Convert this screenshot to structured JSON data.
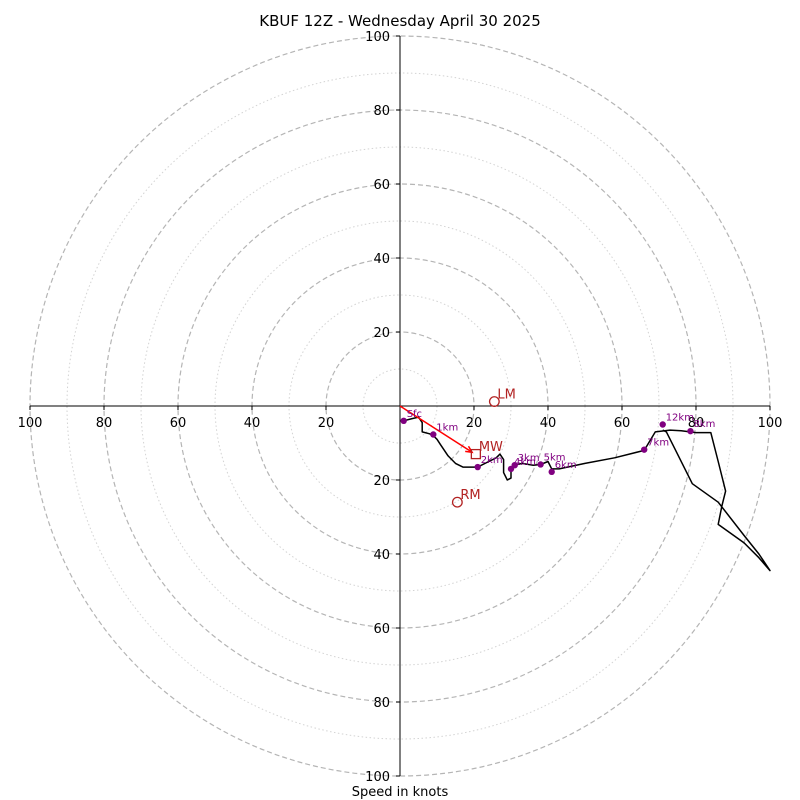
{
  "chart_data": {
    "type": "hodograph",
    "title": "KBUF 12Z - Wednesday April 30 2025",
    "xlabel": "Speed in knots",
    "xlim": [
      -100,
      100
    ],
    "ylim": [
      -100,
      100
    ],
    "ring_labels_major": [
      20,
      40,
      60,
      80,
      100
    ],
    "ring_minor_step": 10,
    "grid": true,
    "axis_tick_labels": {
      "x": [
        "100",
        "80",
        "60",
        "40",
        "20",
        "20",
        "40",
        "60",
        "80",
        "100"
      ],
      "y": [
        "100",
        "80",
        "60",
        "40",
        "20",
        "20",
        "40",
        "60",
        "80",
        "100"
      ]
    },
    "trace_color": "#000000",
    "height_marker_color": "#800080",
    "motion_color": "#b22222",
    "trace": [
      [
        1,
        -4
      ],
      [
        3,
        -3.5
      ],
      [
        5,
        -3
      ],
      [
        6,
        -4.5
      ],
      [
        6,
        -7
      ],
      [
        8,
        -7.5
      ],
      [
        9,
        -8
      ],
      [
        10,
        -9
      ],
      [
        11,
        -10.5
      ],
      [
        12,
        -12
      ],
      [
        13,
        -13.5
      ],
      [
        15,
        -15.5
      ],
      [
        17,
        -16.5
      ],
      [
        21,
        -16.5
      ],
      [
        24,
        -15
      ],
      [
        26,
        -14
      ],
      [
        27,
        -13
      ],
      [
        28,
        -14.5
      ],
      [
        28,
        -18
      ],
      [
        29,
        -20
      ],
      [
        30,
        -19.5
      ],
      [
        30,
        -17.5
      ],
      [
        31,
        -16
      ],
      [
        33,
        -15.5
      ],
      [
        36,
        -16
      ],
      [
        38,
        -15.8
      ],
      [
        40,
        -15
      ],
      [
        41,
        -17
      ],
      [
        43,
        -17
      ],
      [
        50,
        -15.5
      ],
      [
        58,
        -14
      ],
      [
        66,
        -12
      ],
      [
        69,
        -7
      ],
      [
        73,
        -6.5
      ],
      [
        76,
        -6.7
      ],
      [
        80,
        -7.2
      ],
      [
        84,
        -7.2
      ],
      [
        86,
        -15
      ],
      [
        88,
        -23
      ],
      [
        87,
        -27
      ],
      [
        86,
        -32
      ],
      [
        93,
        -37
      ],
      [
        97,
        -41
      ],
      [
        100,
        -44.5
      ],
      [
        97,
        -40
      ],
      [
        93,
        -35
      ],
      [
        86,
        -26
      ],
      [
        79,
        -21
      ],
      [
        74,
        -11
      ],
      [
        72,
        -7
      ],
      [
        71,
        -6.5
      ]
    ],
    "height_markers": [
      {
        "label": "Sfc",
        "u": 1,
        "v": -4
      },
      {
        "label": "1km",
        "u": 9,
        "v": -7.7
      },
      {
        "label": "2km",
        "u": 21,
        "v": -16.5
      },
      {
        "label": "3km",
        "u": 31,
        "v": -16
      },
      {
        "label": "4km",
        "u": 30,
        "v": -17
      },
      {
        "label": "5km",
        "u": 38,
        "v": -15.8
      },
      {
        "label": "6km",
        "u": 41,
        "v": -17.8
      },
      {
        "label": "7km",
        "u": 66,
        "v": -11.8
      },
      {
        "label": "8km",
        "u": 78.5,
        "v": -6.8
      },
      {
        "label": "12km",
        "u": 71,
        "v": -5
      }
    ],
    "storm_motion": [
      {
        "label": "LM",
        "u": 25.5,
        "v": 1.2,
        "marker": "circle"
      },
      {
        "label": "RM",
        "u": 15.5,
        "v": -26,
        "marker": "circle"
      },
      {
        "label": "MW",
        "u": 20.5,
        "v": -13,
        "marker": "square"
      }
    ],
    "shear_vector": {
      "from": [
        0,
        0
      ],
      "to": [
        19.5,
        -12.5
      ]
    }
  }
}
